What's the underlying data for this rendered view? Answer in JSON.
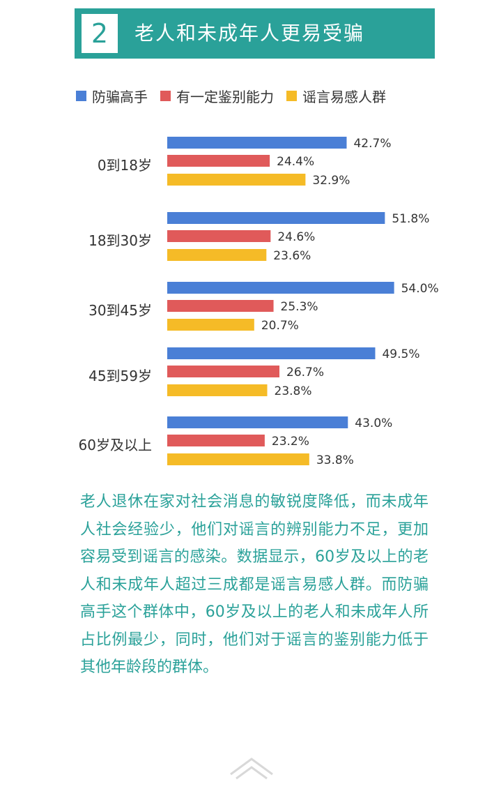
{
  "header": {
    "number": "2",
    "title": "老人和未成年人更易受骗"
  },
  "colors": {
    "accent": "#2aa199",
    "series": [
      "#4a7fd6",
      "#e05a5a",
      "#f5bb27"
    ]
  },
  "legend": [
    {
      "label": "防骗高手"
    },
    {
      "label": "有一定鉴别能力"
    },
    {
      "label": "谣言易感人群"
    }
  ],
  "chart_data": {
    "type": "bar",
    "orientation": "horizontal",
    "categories": [
      "0到18岁",
      "18到30岁",
      "30到45岁",
      "45到59岁",
      "60岁及以上"
    ],
    "series": [
      {
        "name": "防骗高手",
        "values": [
          42.7,
          51.8,
          54.0,
          49.5,
          43.0
        ]
      },
      {
        "name": "有一定鉴别能力",
        "values": [
          24.4,
          24.6,
          25.3,
          26.7,
          23.2
        ]
      },
      {
        "name": "谣言易感人群",
        "values": [
          32.9,
          23.6,
          20.7,
          23.8,
          33.8
        ]
      }
    ],
    "value_labels": [
      [
        "42.7%",
        "24.4%",
        "32.9%"
      ],
      [
        "51.8%",
        "24.6%",
        "23.6%"
      ],
      [
        "54.0%",
        "25.3%",
        "20.7%"
      ],
      [
        "49.5%",
        "26.7%",
        "23.8%"
      ],
      [
        "43.0%",
        "23.2%",
        "33.8%"
      ]
    ],
    "legend_position": "top",
    "grid": false
  },
  "description": "老人退休在家对社会消息的敏锐度降低，而未成年人社会经验少，他们对谣言的辨别能力不足，更加容易受到谣言的感染。数据显示，60岁及以上的老人和未成年人超过三成都是谣言易感人群。而防骗高手这个群体中，60岁及以上的老人和未成年人所占比例最少，同时，他们对于谣言的鉴别能力低于其他年龄段的群体。"
}
